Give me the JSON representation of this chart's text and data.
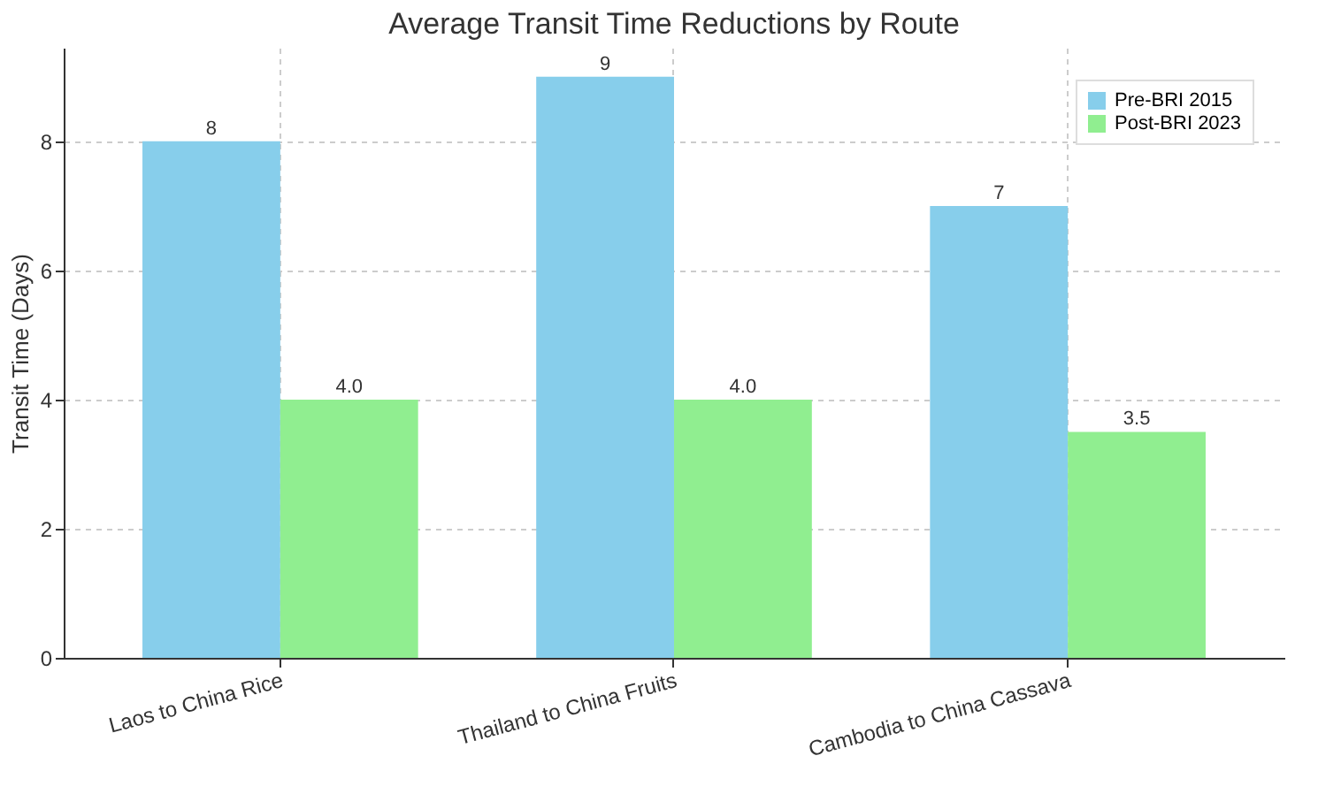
{
  "chart_data": {
    "type": "bar",
    "title": "Average Transit Time Reductions by Route",
    "ylabel": "Transit Time (Days)",
    "categories": [
      "Laos to China Rice",
      "Thailand to China Fruits",
      "Cambodia to China Cassava"
    ],
    "series": [
      {
        "name": "Pre-BRI 2015",
        "color": "#87ceeb",
        "values": [
          8,
          9,
          7
        ],
        "value_labels": [
          "8",
          "9",
          "7"
        ]
      },
      {
        "name": "Post-BRI 2023",
        "color": "#90ee90",
        "values": [
          4.0,
          4.0,
          3.5
        ],
        "value_labels": [
          "4.0",
          "4.0",
          "3.5"
        ]
      }
    ],
    "ylim": [
      0,
      9.45
    ],
    "yticks": [
      0,
      2,
      4,
      6,
      8
    ],
    "grid": true,
    "legend": "top right"
  }
}
